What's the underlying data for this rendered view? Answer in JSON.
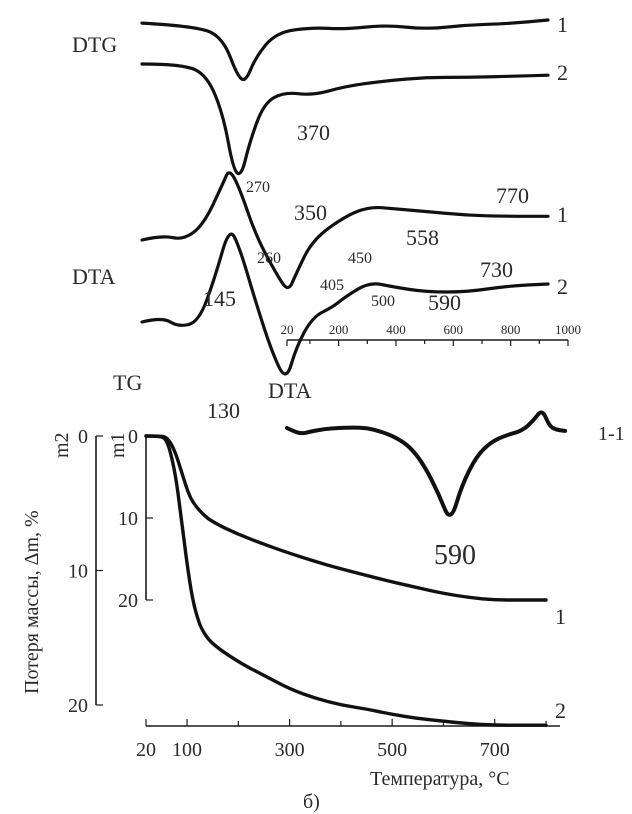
{
  "chart_data": [
    {
      "type": "line",
      "panel": "DTG",
      "label": "DTG",
      "series": [
        {
          "name": "1",
          "points": [
            [
              0,
              0.05
            ],
            [
              0.14,
              0.1
            ],
            [
              0.2,
              0.3
            ],
            [
              0.235,
              0.9
            ],
            [
              0.255,
              1.0
            ],
            [
              0.28,
              0.6
            ],
            [
              0.33,
              0.2
            ],
            [
              0.42,
              0.12
            ],
            [
              0.5,
              0.15
            ],
            [
              0.6,
              0.08
            ],
            [
              0.7,
              0.15
            ],
            [
              0.8,
              0.08
            ],
            [
              0.9,
              0.06
            ],
            [
              1,
              0.0
            ]
          ]
        },
        {
          "name": "2",
          "points": [
            [
              0,
              0.0
            ],
            [
              0.1,
              0.0
            ],
            [
              0.16,
              0.1
            ],
            [
              0.2,
              0.45
            ],
            [
              0.225,
              0.95
            ],
            [
              0.245,
              1.0
            ],
            [
              0.265,
              0.7
            ],
            [
              0.3,
              0.35
            ],
            [
              0.35,
              0.25
            ],
            [
              0.42,
              0.28
            ],
            [
              0.5,
              0.2
            ],
            [
              0.6,
              0.15
            ],
            [
              0.7,
              0.12
            ],
            [
              0.8,
              0.12
            ],
            [
              0.9,
              0.11
            ],
            [
              1,
              0.1
            ]
          ]
        }
      ]
    },
    {
      "type": "line",
      "panel": "DTA",
      "label": "DTA",
      "annotations": [
        "370",
        "270",
        "770",
        "558",
        "145",
        "350",
        "260",
        "450",
        "405",
        "500",
        "590",
        "730",
        "130"
      ],
      "series": [
        {
          "name": "1",
          "points": [
            [
              0,
              0.0
            ],
            [
              0.05,
              0.05
            ],
            [
              0.1,
              0.0
            ],
            [
              0.15,
              0.15
            ],
            [
              0.2,
              0.6
            ],
            [
              0.215,
              0.75
            ],
            [
              0.24,
              0.55
            ],
            [
              0.28,
              0.05
            ],
            [
              0.33,
              -0.35
            ],
            [
              0.36,
              -0.55
            ],
            [
              0.38,
              -0.35
            ],
            [
              0.42,
              0.0
            ],
            [
              0.5,
              0.25
            ],
            [
              0.56,
              0.35
            ],
            [
              0.62,
              0.33
            ],
            [
              0.7,
              0.3
            ],
            [
              0.8,
              0.26
            ],
            [
              0.9,
              0.25
            ],
            [
              1,
              0.25
            ]
          ]
        },
        {
          "name": "2",
          "points": [
            [
              0,
              0.0
            ],
            [
              0.05,
              0.05
            ],
            [
              0.09,
              -0.05
            ],
            [
              0.14,
              0.0
            ],
            [
              0.18,
              0.45
            ],
            [
              0.215,
              0.95
            ],
            [
              0.24,
              0.75
            ],
            [
              0.28,
              0.2
            ],
            [
              0.32,
              -0.3
            ],
            [
              0.355,
              -0.6
            ],
            [
              0.38,
              -0.25
            ],
            [
              0.42,
              0.05
            ],
            [
              0.47,
              0.15
            ],
            [
              0.5,
              0.25
            ],
            [
              0.56,
              0.4
            ],
            [
              0.62,
              0.35
            ],
            [
              0.7,
              0.3
            ],
            [
              0.8,
              0.3
            ],
            [
              0.9,
              0.36
            ],
            [
              1,
              0.38
            ]
          ]
        }
      ]
    },
    {
      "type": "line",
      "panel": "DTA inset",
      "label": "DTA",
      "curve_label": "1-1",
      "peak_label": "590",
      "x_ticks": [
        20,
        200,
        400,
        600,
        800,
        1000
      ],
      "x": [
        20,
        40,
        70,
        100,
        150,
        200,
        250,
        300,
        350,
        400,
        450,
        500,
        550,
        590,
        630,
        680,
        730,
        780,
        840,
        880,
        910,
        935,
        960,
        990
      ],
      "values": [
        0,
        -3,
        -6,
        -4,
        -1,
        0,
        0.5,
        0,
        -4,
        -10,
        -20,
        -40,
        -70,
        -100,
        -60,
        -30,
        -15,
        -8,
        -3,
        8,
        20,
        2,
        -2,
        -3
      ],
      "ylim": [
        -100,
        20
      ]
    },
    {
      "type": "line",
      "panel": "TG",
      "label": "TG",
      "xlabel": "Температура, °C",
      "ylabel": "Потеря массы, Δm, %",
      "left_axis_label": "m2",
      "inner_axis_label": "m1",
      "x_ticks": [
        20,
        100,
        300,
        500,
        700
      ],
      "m2_ticks": [
        0,
        10,
        20
      ],
      "m1_ticks": [
        0,
        10,
        20
      ],
      "panel_label": "б)",
      "xlim": [
        20,
        800
      ],
      "series": [
        {
          "name": "1",
          "axis": "m1",
          "x": [
            20,
            50,
            60,
            70,
            80,
            90,
            100,
            110,
            130,
            150,
            200,
            250,
            300,
            350,
            400,
            450,
            500,
            550,
            600,
            650,
            700,
            750,
            800
          ],
          "values": [
            0,
            0,
            0.2,
            1,
            2.5,
            4.5,
            6.5,
            8,
            9.5,
            10.5,
            12,
            13.2,
            14.3,
            15.3,
            16.2,
            17,
            17.8,
            18.5,
            19.2,
            19.7,
            20,
            20,
            20
          ]
        },
        {
          "name": "2",
          "axis": "m2",
          "x": [
            20,
            50,
            60,
            70,
            80,
            90,
            100,
            110,
            120,
            130,
            150,
            200,
            250,
            300,
            350,
            400,
            450,
            500,
            550,
            600,
            650,
            700,
            750,
            800
          ],
          "values": [
            0,
            0,
            0.3,
            1.5,
            3.5,
            6.5,
            9.5,
            12,
            13.5,
            14.5,
            15.5,
            16.8,
            17.8,
            18.8,
            19.5,
            20,
            20.3,
            20.7,
            21,
            21.2,
            21.4,
            21.5,
            21.5,
            21.5
          ]
        }
      ]
    }
  ]
}
